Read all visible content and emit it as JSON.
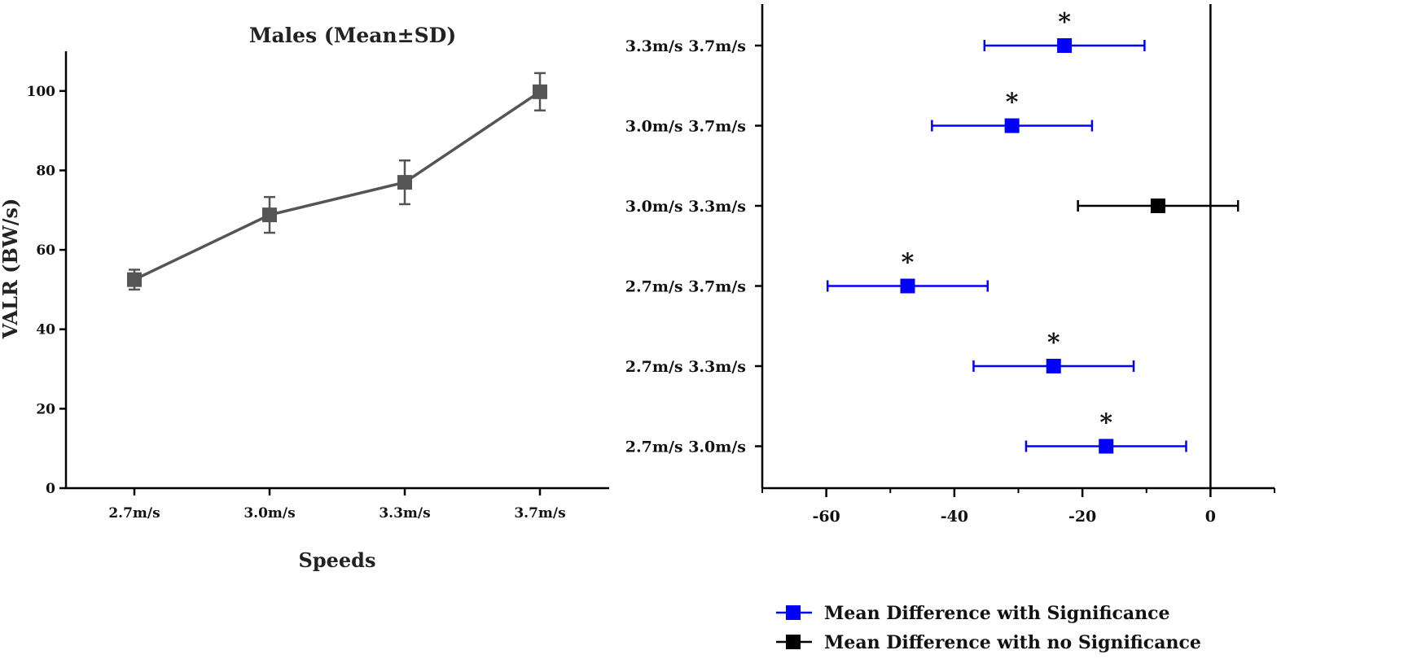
{
  "chart_data": [
    {
      "type": "line",
      "title": "Males (Mean±SD)",
      "xlabel": "Speeds",
      "ylabel": "VALR (BW/s)",
      "categories": [
        "2.7m/s",
        "3.0m/s",
        "3.3m/s",
        "3.7m/s"
      ],
      "series": [
        {
          "name": "Males",
          "values": [
            52.5,
            68.8,
            77.0,
            99.8
          ],
          "sd": [
            2.5,
            4.5,
            5.5,
            4.7
          ],
          "color": "#555555"
        }
      ],
      "ylim": [
        0,
        110
      ],
      "yticks": [
        0,
        20,
        40,
        60,
        80,
        100
      ],
      "grid": false
    },
    {
      "type": "scatter",
      "orientation": "horizontal-forest",
      "xlim": [
        -70,
        10
      ],
      "xticks": [
        -60,
        -40,
        -20,
        0
      ],
      "reference_line_x": 0,
      "rows": [
        {
          "label": "3.3m/s 3.7m/s",
          "mean": -22.8,
          "low": -35.3,
          "high": -10.3,
          "significant": true
        },
        {
          "label": "3.0m/s 3.7m/s",
          "mean": -31.0,
          "low": -43.5,
          "high": -18.5,
          "significant": true
        },
        {
          "label": "3.0m/s 3.3m/s",
          "mean": -8.2,
          "low": -20.7,
          "high": 4.3,
          "significant": false
        },
        {
          "label": "2.7m/s 3.7m/s",
          "mean": -47.3,
          "low": -59.8,
          "high": -34.8,
          "significant": true
        },
        {
          "label": "2.7m/s 3.3m/s",
          "mean": -24.5,
          "low": -37.0,
          "high": -12.0,
          "significant": true
        },
        {
          "label": "2.7m/s 3.0m/s",
          "mean": -16.3,
          "low": -28.8,
          "high": -3.8,
          "significant": true
        }
      ],
      "significance_marker": "*",
      "legend": [
        {
          "label": "Mean Difference with Significance",
          "color": "#0000ff"
        },
        {
          "label": "Mean Difference with no Significance",
          "color": "#000000"
        }
      ],
      "legend_position": "bottom"
    }
  ]
}
